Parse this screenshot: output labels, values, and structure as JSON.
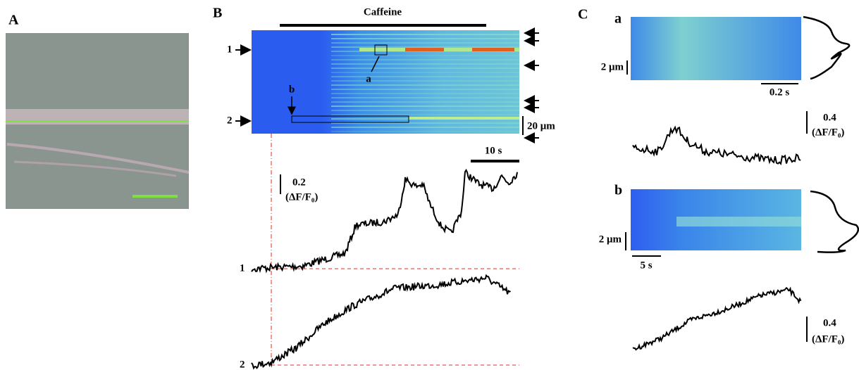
{
  "panel_a": {
    "label": "A"
  },
  "panel_b": {
    "label": "B",
    "stimulus": "Caffeine",
    "image_rows": [
      "1",
      "2"
    ],
    "roi_labels": [
      "a",
      "b"
    ],
    "space_scale": "20 μm",
    "time_scale": "10 s",
    "amp_scale": "0.2",
    "amp_unit": "(ΔF/F₀)",
    "trace_labels": [
      "1",
      "2"
    ]
  },
  "panel_c": {
    "label": "C",
    "a": {
      "label": "a",
      "space_scale": "2 μm",
      "time_scale": "0.2 s",
      "amp_scale": "0.4",
      "amp_unit": "(ΔF/F₀)"
    },
    "b": {
      "label": "b",
      "space_scale": "2 μm",
      "time_scale": "5 s",
      "amp_scale": "0.4",
      "amp_unit": "(ΔF/F₀)"
    }
  }
}
